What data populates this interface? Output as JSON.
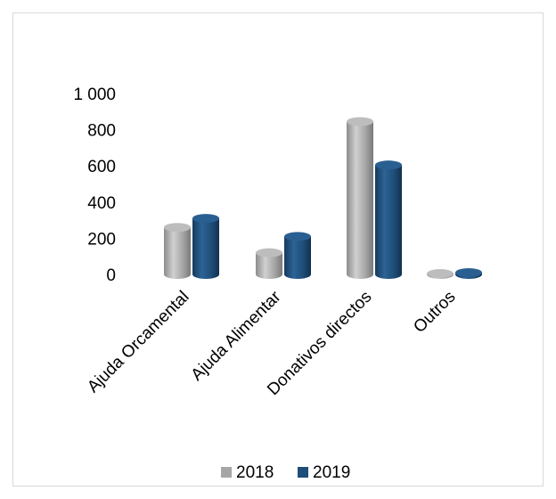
{
  "chart_data": {
    "type": "bar",
    "style": "3d-cylinder",
    "categories": [
      "Ajuda Orcamental",
      "Ajuda Alimentar",
      "Donativos directos",
      "Outros"
    ],
    "series": [
      {
        "name": "2018",
        "values": [
          260,
          120,
          845,
          5
        ],
        "color": "#a6a6a6"
      },
      {
        "name": "2019",
        "values": [
          310,
          210,
          605,
          10
        ],
        "color": "#1f4e79"
      }
    ],
    "y_ticks": [
      "0",
      "200",
      "400",
      "600",
      "800",
      "1 000"
    ],
    "ylim": [
      0,
      1000
    ],
    "grid": false,
    "legend": "bottom-center"
  }
}
